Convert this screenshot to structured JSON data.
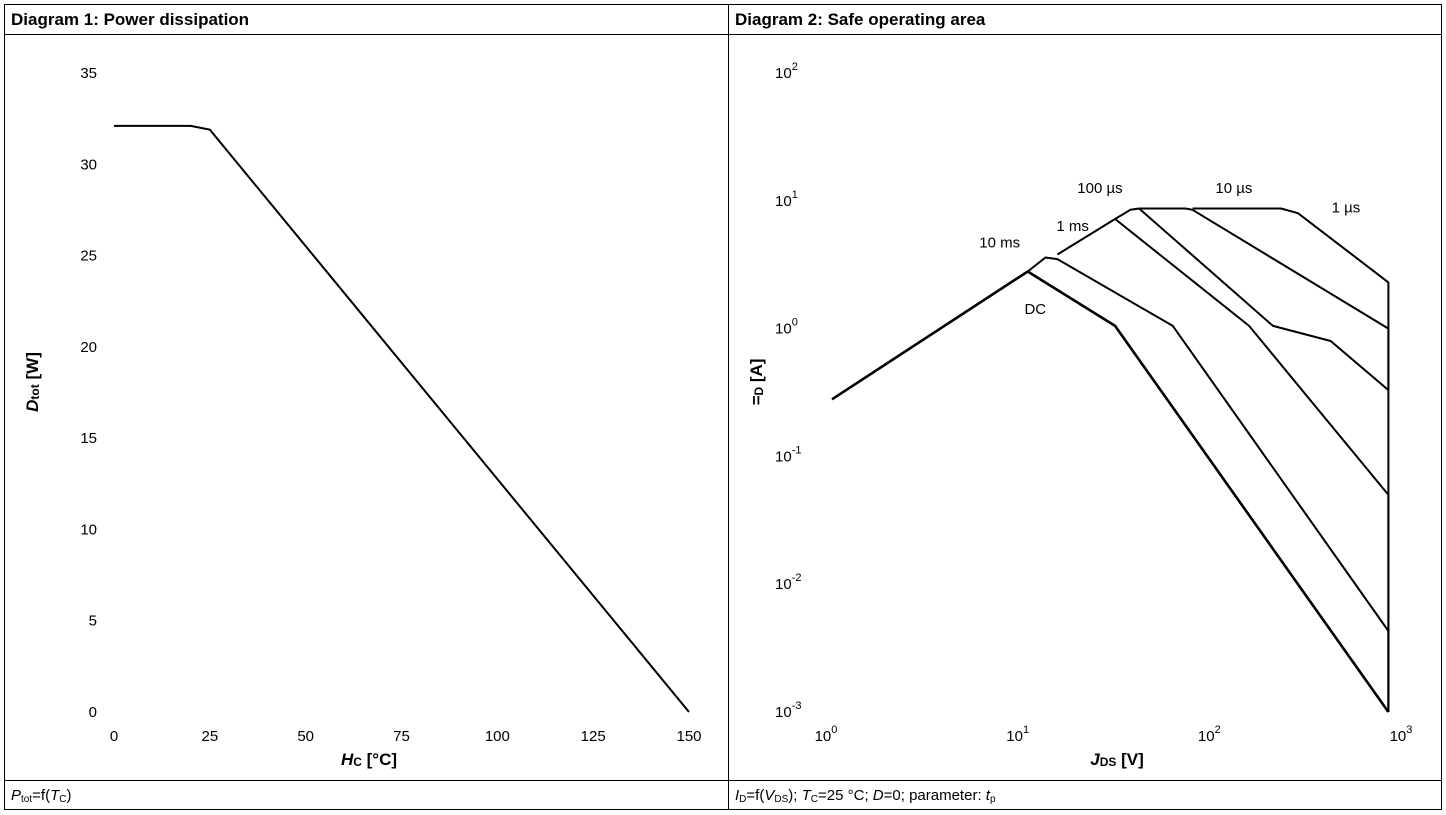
{
  "chart_data": [
    {
      "type": "line",
      "title": "Diagram 1: Power dissipation",
      "xlabel": "H",
      "xlabel_sub": "C",
      "xlabel_unit": " [°C]",
      "ylabel": "D",
      "ylabel_sub": "tot",
      "ylabel_unit": " [W]",
      "xlim": [
        0,
        150
      ],
      "ylim": [
        0,
        35
      ],
      "xticks": [
        "0",
        "25",
        "50",
        "75",
        "100",
        "125",
        "150"
      ],
      "yticks": [
        "0",
        "5",
        "10",
        "15",
        "20",
        "25",
        "30",
        "35"
      ],
      "grid": false,
      "series": [
        {
          "x": [
            0,
            20,
            25,
            150
          ],
          "y": [
            32.1,
            32.1,
            31.9,
            0
          ]
        }
      ],
      "caption": {
        "a": "P",
        "a_sub": "tot",
        "b": "=f(",
        "c": "T",
        "c_sub": "C",
        "d": ")"
      }
    },
    {
      "type": "line",
      "title": "Diagram 2: Safe operating area",
      "xlabel": "J",
      "xlabel_sub": "DS",
      "xlabel_unit": " [V]",
      "ylabel": "=",
      "ylabel_sub": "D",
      "ylabel_unit": " [A]",
      "xscale": "log",
      "yscale": "log",
      "xlim": [
        1,
        1000
      ],
      "ylim": [
        0.001,
        100
      ],
      "xticks": [
        {
          "base": "10",
          "exp": "0"
        },
        {
          "base": "10",
          "exp": "1"
        },
        {
          "base": "10",
          "exp": "2"
        },
        {
          "base": "10",
          "exp": "3"
        }
      ],
      "yticks": [
        {
          "base": "10",
          "exp": "-3"
        },
        {
          "base": "10",
          "exp": "-2"
        },
        {
          "base": "10",
          "exp": "-1"
        },
        {
          "base": "10",
          "exp": "0"
        },
        {
          "base": "10",
          "exp": "1"
        },
        {
          "base": "10",
          "exp": "2"
        }
      ],
      "grid": false,
      "series": [
        {
          "name": "DC",
          "x": [
            1,
            10.5,
            30,
            800,
            800
          ],
          "y": [
            0.28,
            2.8,
            1.05,
            0.001,
            0.001
          ]
        },
        {
          "name": "10 ms",
          "x": [
            10.5,
            13,
            15,
            60,
            800,
            800
          ],
          "y": [
            2.8,
            3.6,
            3.5,
            1.05,
            0.0043,
            0.001
          ]
        },
        {
          "name": "1 ms",
          "x": [
            15,
            30,
            150,
            800,
            800
          ],
          "y": [
            3.8,
            7.2,
            1.05,
            0.05,
            0.001
          ]
        },
        {
          "name": "100 µs",
          "x": [
            30,
            36,
            40,
            200,
            400,
            800,
            800
          ],
          "y": [
            7.2,
            8.5,
            8.7,
            1.05,
            0.8,
            0.33,
            0.001
          ]
        },
        {
          "name": "10 µs",
          "x": [
            40,
            70,
            76,
            800,
            800
          ],
          "y": [
            8.7,
            8.7,
            8.5,
            1.0,
            0.33
          ]
        },
        {
          "name": "1 µs",
          "x": [
            76,
            220,
            270,
            800,
            800
          ],
          "y": [
            8.7,
            8.7,
            8.0,
            2.3,
            0.33
          ]
        }
      ],
      "curve_labels": [
        {
          "text": "DC",
          "x": 11.5,
          "y": 1.3
        },
        {
          "text": "10 ms",
          "x": 7.5,
          "y": 4.3
        },
        {
          "text": "1 ms",
          "x": 18,
          "y": 5.8
        },
        {
          "text": "100 µs",
          "x": 25,
          "y": 11.5
        },
        {
          "text": "10 µs",
          "x": 125,
          "y": 11.5
        },
        {
          "text": "1 µs",
          "x": 480,
          "y": 8.1
        }
      ],
      "caption": {
        "a": "I",
        "a_sub": "D",
        "b": "=f(",
        "c": "V",
        "c_sub": "DS",
        "d": "); ",
        "e": "T",
        "e_sub": "C",
        "f": "=25 °C; ",
        "g": "D",
        "h": "=0; parameter: ",
        "i": "t",
        "i_sub": "p"
      }
    }
  ]
}
